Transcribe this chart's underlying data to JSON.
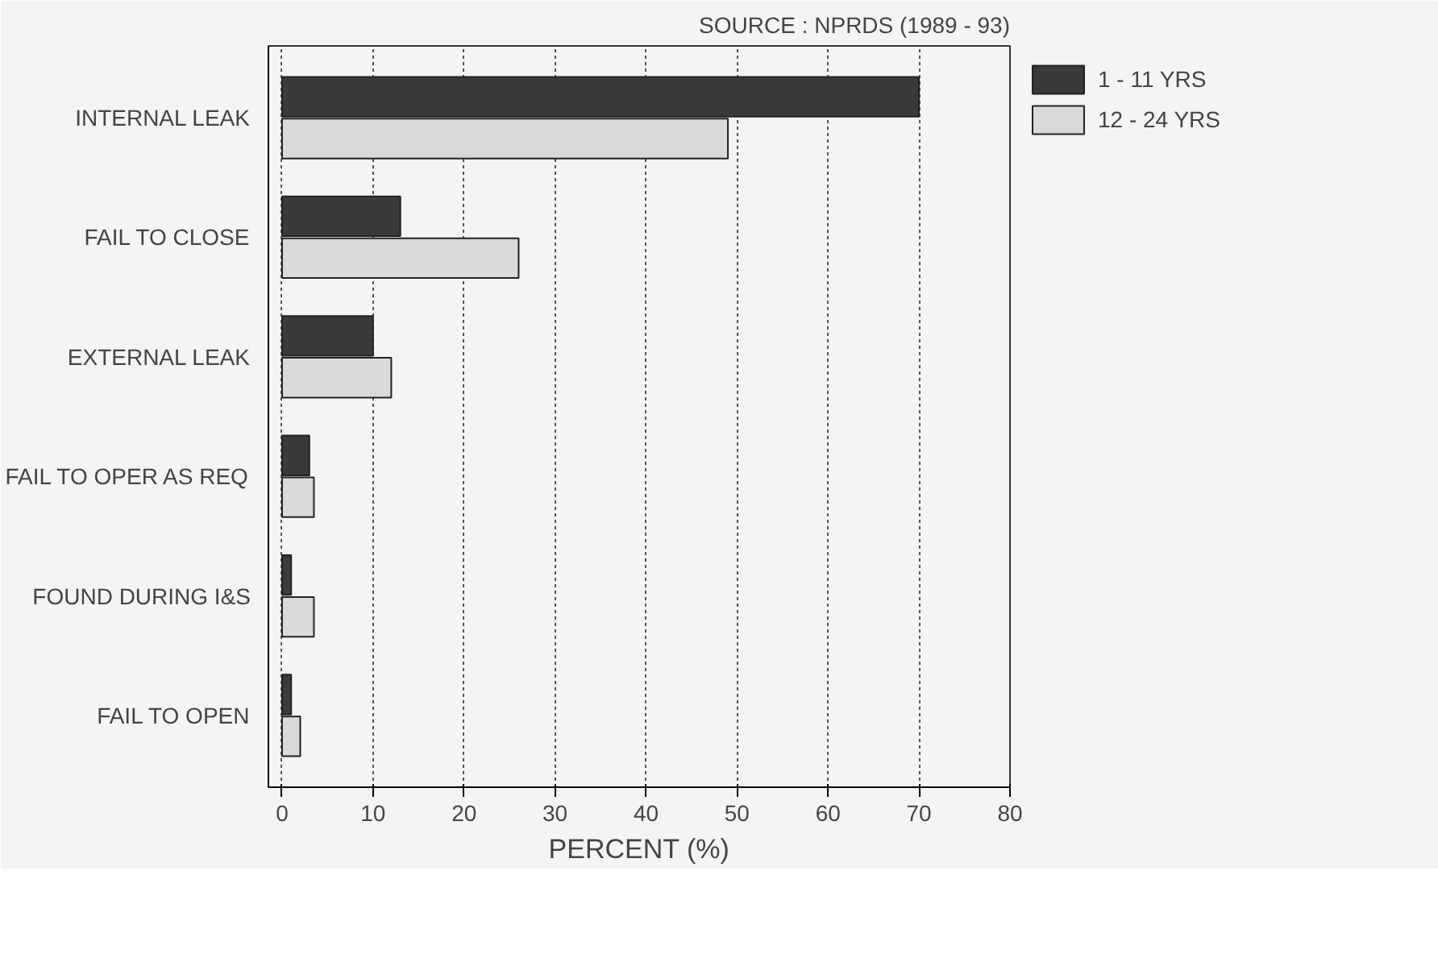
{
  "chart_data": {
    "type": "bar",
    "orientation": "horizontal",
    "categories": [
      "INTERNAL LEAK",
      "FAIL TO CLOSE",
      "EXTERNAL LEAK",
      "FAIL TO OPER AS REQ",
      "FOUND DURING I&S",
      "FAIL TO OPEN"
    ],
    "series": [
      {
        "name": "1 - 11 YRS",
        "color": "#3a3a3a",
        "values": [
          70,
          13,
          10,
          3,
          1,
          1
        ]
      },
      {
        "name": "12 - 24 YRS",
        "color": "#d9d9d9",
        "values": [
          49,
          26,
          12,
          3.5,
          3.5,
          2
        ]
      }
    ],
    "xlabel": "PERCENT (%)",
    "xlim": [
      -1.5,
      80
    ],
    "xticks": [
      0,
      10,
      20,
      30,
      40,
      50,
      60,
      70,
      80
    ],
    "grid": "x",
    "legend": "top right",
    "annotations": [
      "SOURCE : NPRDS (1989 - 93)"
    ]
  }
}
